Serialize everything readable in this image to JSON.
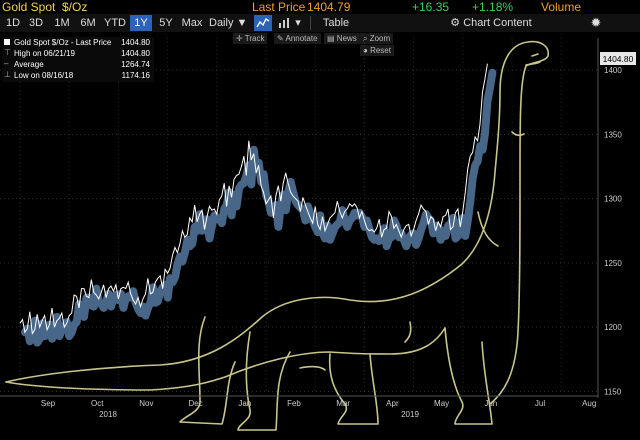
{
  "header": {
    "title": "Gold Spot",
    "unit": "$/Oz",
    "last_price_label": "Last Price",
    "last_price": "1404.79",
    "change": "+16.35",
    "change_pct": "+1.18%",
    "volume_label": "Volume"
  },
  "toolbar": {
    "ranges": [
      "1D",
      "3D",
      "1M",
      "6M",
      "YTD",
      "1Y",
      "5Y",
      "Max"
    ],
    "active_range": "1Y",
    "interval": "Daily ▼",
    "table_label": "Table",
    "chart_content_label": "Chart Content"
  },
  "annotations": {
    "track": "Track",
    "annotate": "Annotate",
    "news": "News",
    "zoom": "Zoom",
    "reset": "Reset"
  },
  "legend": [
    {
      "label": "Gold Spot $/Oz - Last Price",
      "value": "1404.80"
    },
    {
      "label": "High on 06/21/19",
      "value": "1404.80"
    },
    {
      "label": "Average",
      "value": "1264.74"
    },
    {
      "label": "Low on 08/16/18",
      "value": "1174.16"
    }
  ],
  "price_flag": "1404.80",
  "chart_data": {
    "type": "line",
    "title": "Gold Spot $/Oz",
    "ylim": [
      1148,
      1425
    ],
    "yticks": [
      1150,
      1200,
      1250,
      1300,
      1350,
      1400
    ],
    "ytick_labels": [
      "1150",
      "1200",
      "1250",
      "1300",
      "1350",
      "1400"
    ],
    "xmonths": [
      "Sep",
      "Oct",
      "Nov",
      "Dec",
      "Jan",
      "Feb",
      "Mar",
      "Apr",
      "May",
      "Jun",
      "Jul",
      "Aug"
    ],
    "xyears": [
      "2018",
      "2019"
    ],
    "series": [
      {
        "name": "Last Price",
        "points": [
          [
            0.0,
            1203
          ],
          [
            0.05,
            1206
          ],
          [
            0.1,
            1196
          ],
          [
            0.15,
            1199
          ],
          [
            0.2,
            1212
          ],
          [
            0.25,
            1195
          ],
          [
            0.3,
            1198
          ],
          [
            0.35,
            1210
          ],
          [
            0.4,
            1200
          ],
          [
            0.45,
            1205
          ],
          [
            0.5,
            1209
          ],
          [
            0.55,
            1198
          ],
          [
            0.6,
            1202
          ],
          [
            0.65,
            1215
          ],
          [
            0.7,
            1200
          ],
          [
            0.75,
            1205
          ],
          [
            0.8,
            1207
          ],
          [
            0.85,
            1211
          ],
          [
            0.9,
            1200
          ],
          [
            0.95,
            1203
          ],
          [
            1.0,
            1209
          ],
          [
            1.05,
            1211
          ],
          [
            1.1,
            1225
          ],
          [
            1.15,
            1224
          ],
          [
            1.2,
            1215
          ],
          [
            1.25,
            1230
          ],
          [
            1.3,
            1230
          ],
          [
            1.35,
            1224
          ],
          [
            1.4,
            1223
          ],
          [
            1.45,
            1237
          ],
          [
            1.5,
            1227
          ],
          [
            1.55,
            1225
          ],
          [
            1.6,
            1222
          ],
          [
            1.65,
            1227
          ],
          [
            1.7,
            1233
          ],
          [
            1.75,
            1223
          ],
          [
            1.8,
            1230
          ],
          [
            1.85,
            1232
          ],
          [
            1.9,
            1228
          ],
          [
            1.95,
            1233
          ],
          [
            2.0,
            1222
          ],
          [
            2.05,
            1230
          ],
          [
            2.1,
            1231
          ],
          [
            2.15,
            1230
          ],
          [
            2.2,
            1235
          ],
          [
            2.25,
            1226
          ],
          [
            2.3,
            1221
          ],
          [
            2.35,
            1218
          ],
          [
            2.4,
            1223
          ],
          [
            2.45,
            1216
          ],
          [
            2.5,
            1222
          ],
          [
            2.55,
            1226
          ],
          [
            2.6,
            1238
          ],
          [
            2.65,
            1226
          ],
          [
            2.7,
            1227
          ],
          [
            2.75,
            1235
          ],
          [
            2.8,
            1238
          ],
          [
            2.85,
            1240
          ],
          [
            2.9,
            1230
          ],
          [
            2.95,
            1245
          ],
          [
            3.0,
            1242
          ],
          [
            3.05,
            1246
          ],
          [
            3.1,
            1256
          ],
          [
            3.15,
            1262
          ],
          [
            3.2,
            1258
          ],
          [
            3.25,
            1265
          ],
          [
            3.3,
            1275
          ],
          [
            3.35,
            1270
          ],
          [
            3.4,
            1272
          ],
          [
            3.45,
            1285
          ],
          [
            3.5,
            1282
          ],
          [
            3.55,
            1295
          ],
          [
            3.6,
            1282
          ],
          [
            3.65,
            1288
          ],
          [
            3.7,
            1291
          ],
          [
            3.75,
            1276
          ],
          [
            3.8,
            1286
          ],
          [
            3.85,
            1294
          ],
          [
            3.9,
            1291
          ],
          [
            3.95,
            1292
          ],
          [
            4.0,
            1288
          ],
          [
            4.05,
            1299
          ],
          [
            4.1,
            1302
          ],
          [
            4.15,
            1312
          ],
          [
            4.2,
            1294
          ],
          [
            4.25,
            1310
          ],
          [
            4.3,
            1301
          ],
          [
            4.35,
            1315
          ],
          [
            4.4,
            1318
          ],
          [
            4.45,
            1319
          ],
          [
            4.5,
            1325
          ],
          [
            4.55,
            1333
          ],
          [
            4.6,
            1318
          ],
          [
            4.65,
            1345
          ],
          [
            4.7,
            1330
          ],
          [
            4.75,
            1335
          ],
          [
            4.8,
            1320
          ],
          [
            4.85,
            1326
          ],
          [
            4.9,
            1310
          ],
          [
            4.95,
            1305
          ],
          [
            5.0,
            1296
          ],
          [
            5.05,
            1299
          ],
          [
            5.1,
            1302
          ],
          [
            5.15,
            1285
          ],
          [
            5.2,
            1302
          ],
          [
            5.25,
            1310
          ],
          [
            5.3,
            1298
          ],
          [
            5.35,
            1312
          ],
          [
            5.4,
            1320
          ],
          [
            5.45,
            1312
          ],
          [
            5.5,
            1305
          ],
          [
            5.55,
            1302
          ],
          [
            5.6,
            1300
          ],
          [
            5.65,
            1298
          ],
          [
            5.7,
            1290
          ],
          [
            5.75,
            1301
          ],
          [
            5.8,
            1295
          ],
          [
            5.85,
            1290
          ],
          [
            5.9,
            1285
          ],
          [
            5.95,
            1281
          ],
          [
            6.0,
            1294
          ],
          [
            6.05,
            1280
          ],
          [
            6.1,
            1276
          ],
          [
            6.15,
            1286
          ],
          [
            6.2,
            1275
          ],
          [
            6.25,
            1280
          ],
          [
            6.3,
            1285
          ],
          [
            6.35,
            1287
          ],
          [
            6.4,
            1289
          ],
          [
            6.45,
            1298
          ],
          [
            6.5,
            1290
          ],
          [
            6.55,
            1285
          ],
          [
            6.6,
            1290
          ],
          [
            6.65,
            1292
          ],
          [
            6.7,
            1296
          ],
          [
            6.75,
            1294
          ],
          [
            6.8,
            1296
          ],
          [
            6.85,
            1293
          ],
          [
            6.9,
            1285
          ],
          [
            6.95,
            1290
          ],
          [
            7.0,
            1283
          ],
          [
            7.05,
            1277
          ],
          [
            7.1,
            1275
          ],
          [
            7.15,
            1276
          ],
          [
            7.2,
            1274
          ],
          [
            7.25,
            1277
          ],
          [
            7.3,
            1284
          ],
          [
            7.35,
            1270
          ],
          [
            7.4,
            1276
          ],
          [
            7.45,
            1277
          ],
          [
            7.5,
            1290
          ],
          [
            7.55,
            1286
          ],
          [
            7.6,
            1277
          ],
          [
            7.65,
            1280
          ],
          [
            7.7,
            1275
          ],
          [
            7.75,
            1270
          ],
          [
            7.8,
            1276
          ],
          [
            7.85,
            1279
          ],
          [
            7.9,
            1280
          ],
          [
            7.95,
            1271
          ],
          [
            8.0,
            1276
          ],
          [
            8.05,
            1283
          ],
          [
            8.1,
            1288
          ],
          [
            8.15,
            1295
          ],
          [
            8.2,
            1292
          ],
          [
            8.25,
            1290
          ],
          [
            8.3,
            1280
          ],
          [
            8.35,
            1286
          ],
          [
            8.4,
            1284
          ],
          [
            8.45,
            1275
          ],
          [
            8.5,
            1282
          ],
          [
            8.55,
            1278
          ],
          [
            8.6,
            1286
          ],
          [
            8.65,
            1287
          ],
          [
            8.7,
            1292
          ],
          [
            8.75,
            1276
          ],
          [
            8.8,
            1278
          ],
          [
            8.85,
            1289
          ],
          [
            8.9,
            1292
          ],
          [
            8.95,
            1278
          ],
          [
            9.0,
            1290
          ],
          [
            9.05,
            1305
          ],
          [
            9.1,
            1323
          ],
          [
            9.15,
            1333
          ],
          [
            9.2,
            1336
          ],
          [
            9.25,
            1348
          ],
          [
            9.3,
            1345
          ],
          [
            9.35,
            1358
          ],
          [
            9.4,
            1383
          ],
          [
            9.45,
            1393
          ],
          [
            9.5,
            1405
          ]
        ]
      }
    ]
  },
  "dino_color": "#c8c58a",
  "line_color": "#ffffff",
  "band_color": "#4b6b8f"
}
